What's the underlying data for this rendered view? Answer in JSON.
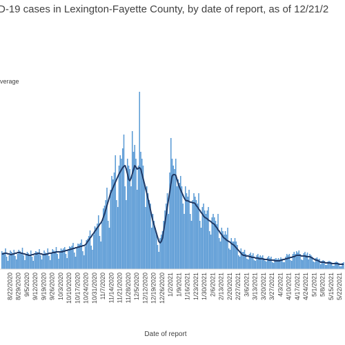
{
  "chart_data": {
    "type": "bar_line",
    "title": "D-19 cases in Lexington-Fayette County, by date of report, as of 12/21/2",
    "legend_fragment": "verage",
    "x_label": "Date of report",
    "categories": [
      null,
      null,
      null,
      null,
      null,
      null,
      null,
      "8/22/2020",
      null,
      null,
      null,
      null,
      null,
      null,
      "8/29/2020",
      null,
      null,
      null,
      null,
      null,
      null,
      "9/5/2020",
      null,
      null,
      null,
      null,
      null,
      null,
      "9/12/2020",
      null,
      null,
      null,
      null,
      null,
      null,
      "9/19/2020",
      null,
      null,
      null,
      null,
      null,
      null,
      "9/26/2020",
      null,
      null,
      null,
      null,
      null,
      null,
      "10/3/2020",
      null,
      null,
      null,
      null,
      null,
      null,
      "10/10/2020",
      null,
      null,
      null,
      null,
      null,
      null,
      "10/17/2020",
      null,
      null,
      null,
      null,
      null,
      null,
      "10/24/2020",
      null,
      null,
      null,
      null,
      null,
      null,
      "10/31/2020",
      null,
      null,
      null,
      null,
      null,
      null,
      "11/7/2020",
      null,
      null,
      null,
      null,
      null,
      null,
      "11/14/2020",
      null,
      null,
      null,
      null,
      null,
      null,
      "11/21/2020",
      null,
      null,
      null,
      null,
      null,
      null,
      "11/28/2020",
      null,
      null,
      null,
      null,
      null,
      null,
      "12/5/2020",
      null,
      null,
      null,
      null,
      null,
      null,
      "12/12/2020",
      null,
      null,
      null,
      null,
      null,
      null,
      "12/19/2020",
      null,
      null,
      null,
      null,
      null,
      null,
      "12/26/2020",
      null,
      null,
      null,
      null,
      null,
      null,
      "1/2/2021",
      null,
      null,
      null,
      null,
      null,
      null,
      "1/9/2021",
      null,
      null,
      null,
      null,
      null,
      null,
      "1/16/2021",
      null,
      null,
      null,
      null,
      null,
      null,
      "1/23/2021",
      null,
      null,
      null,
      null,
      null,
      null,
      "1/30/2021",
      null,
      null,
      null,
      null,
      null,
      null,
      "2/6/2021",
      null,
      null,
      null,
      null,
      null,
      null,
      "2/13/2021",
      null,
      null,
      null,
      null,
      null,
      null,
      "2/20/2021",
      null,
      null,
      null,
      null,
      null,
      null,
      "2/27/2021",
      null,
      null,
      null,
      null,
      null,
      null,
      "3/6/2021",
      null,
      null,
      null,
      null,
      null,
      null,
      "3/13/2021",
      null,
      null,
      null,
      null,
      null,
      null,
      "3/20/2021",
      null,
      null,
      null,
      null,
      null,
      null,
      "3/27/2021",
      null,
      null,
      null,
      null,
      null,
      null,
      "4/3/2021",
      null,
      null,
      null,
      null,
      null,
      null,
      "4/10/2021",
      null,
      null,
      null,
      null,
      null,
      null,
      "4/17/2021",
      null,
      null,
      null,
      null,
      null,
      null,
      "4/24/2021",
      null,
      null,
      null,
      null,
      null,
      null,
      "5/1/2021",
      null,
      null,
      null,
      null,
      null,
      null,
      "5/8/2021",
      null,
      null,
      null,
      null,
      null,
      null,
      "5/15/2021",
      null,
      null,
      null,
      null,
      null,
      null,
      "5/22/2021",
      null,
      null,
      null
    ],
    "series": [
      {
        "type": "bar",
        "color": "#5b9bd5",
        "values": [
          26,
          24,
          22,
          30,
          18,
          12,
          20,
          27,
          25,
          23,
          28,
          19,
          14,
          22,
          28,
          26,
          24,
          31,
          20,
          13,
          21,
          25,
          23,
          21,
          27,
          18,
          12,
          20,
          26,
          25,
          24,
          29,
          20,
          14,
          22,
          27,
          24,
          22,
          30,
          19,
          13,
          23,
          29,
          27,
          26,
          32,
          22,
          15,
          25,
          30,
          28,
          30,
          32,
          22,
          16,
          27,
          33,
          32,
          34,
          38,
          24,
          18,
          30,
          37,
          36,
          38,
          43,
          26,
          20,
          33,
          42,
          44,
          48,
          56,
          34,
          28,
          50,
          62,
          60,
          66,
          78,
          48,
          40,
          68,
          88,
          92,
          100,
          118,
          70,
          60,
          115,
          135,
          130,
          140,
          165,
          100,
          90,
          150,
          165,
          160,
          175,
          195,
          120,
          100,
          160,
          150,
          145,
          120,
          200,
          170,
          180,
          160,
          115,
          150,
          257,
          170,
          160,
          150,
          125,
          90,
          120,
          110,
          100,
          95,
          60,
          80,
          70,
          60,
          50,
          35,
          25,
          45,
          50,
          55,
          70,
          85,
          95,
          110,
          80,
          140,
          190,
          160,
          150,
          145,
          160,
          120,
          130,
          125,
          135,
          120,
          95,
          80,
          120,
          110,
          105,
          115,
          80,
          70,
          100,
          110,
          105,
          100,
          95,
          110,
          70,
          60,
          90,
          95,
          85,
          80,
          85,
          90,
          55,
          50,
          75,
          80,
          75,
          70,
          65,
          80,
          45,
          40,
          60,
          55,
          50,
          55,
          50,
          60,
          30,
          28,
          45,
          40,
          40,
          45,
          40,
          35,
          20,
          18,
          30,
          25,
          25,
          28,
          22,
          15,
          14,
          22,
          24,
          20,
          23,
          13,
          12,
          20,
          22,
          18,
          20,
          18,
          20,
          16,
          12,
          11,
          17,
          19,
          16,
          18,
          10,
          9,
          15,
          16,
          14,
          16,
          14,
          17,
          15,
          10,
          10,
          18,
          22,
          20,
          22,
          13,
          12,
          22,
          25,
          22,
          26,
          24,
          27,
          22,
          14,
          13,
          23,
          25,
          21,
          24,
          14,
          22,
          20,
          18,
          11,
          10,
          16,
          17,
          14,
          15,
          7,
          12,
          13,
          12,
          6,
          6,
          11,
          12,
          11,
          10,
          5,
          5,
          10,
          11,
          10,
          9,
          4,
          4,
          9,
          10
        ]
      },
      {
        "type": "line",
        "color": "#1f3864",
        "values": [
          22,
          22,
          23,
          23,
          23,
          22,
          22,
          21,
          21,
          22,
          22,
          23,
          23,
          24,
          24,
          24,
          23,
          23,
          22,
          22,
          21,
          21,
          20,
          20,
          20,
          21,
          21,
          22,
          22,
          22,
          23,
          23,
          22,
          22,
          21,
          21,
          21,
          22,
          22,
          23,
          23,
          23,
          24,
          24,
          24,
          25,
          25,
          25,
          25,
          25,
          25,
          26,
          26,
          27,
          27,
          28,
          28,
          29,
          29,
          30,
          30,
          31,
          31,
          32,
          32,
          33,
          33,
          34,
          34,
          35,
          37,
          40,
          42,
          45,
          47,
          50,
          52,
          55,
          57,
          60,
          62,
          65,
          67,
          70,
          75,
          80,
          86,
          92,
          98,
          104,
          110,
          114,
          118,
          122,
          126,
          130,
          134,
          138,
          141,
          144,
          147,
          149,
          150,
          145,
          138,
          130,
          128,
          132,
          138,
          144,
          150,
          148,
          145,
          146,
          147,
          145,
          138,
          131,
          124,
          117,
          110,
          102,
          94,
          86,
          78,
          70,
          64,
          58,
          52,
          46,
          40,
          38,
          40,
          45,
          56,
          67,
          78,
          90,
          101,
          112,
          124,
          135,
          137,
          137,
          136,
          130,
          124,
          119,
          115,
          111,
          107,
          103,
          100,
          99,
          99,
          98,
          97,
          97,
          96,
          96,
          95,
          92,
          90,
          87,
          85,
          82,
          80,
          77,
          75,
          74,
          73,
          71,
          70,
          69,
          67,
          66,
          65,
          62,
          60,
          57,
          55,
          52,
          50,
          47,
          45,
          44,
          42,
          41,
          40,
          39,
          37,
          36,
          35,
          33,
          31,
          29,
          27,
          25,
          23,
          21,
          20,
          20,
          19,
          19,
          19,
          18,
          18,
          17,
          17,
          17,
          16,
          16,
          16,
          15,
          15,
          15,
          15,
          14,
          14,
          14,
          14,
          13,
          13,
          13,
          13,
          13,
          12,
          12,
          12,
          12,
          12,
          13,
          13,
          14,
          14,
          15,
          15,
          16,
          16,
          17,
          17,
          18,
          18,
          19,
          20,
          20,
          20,
          20,
          19,
          19,
          19,
          19,
          18,
          18,
          18,
          18,
          17,
          16,
          15,
          14,
          13,
          13,
          12,
          11,
          10,
          10,
          10,
          10,
          9,
          9,
          9,
          9,
          9,
          8,
          8,
          8,
          8,
          8,
          8,
          7,
          7,
          7,
          7,
          7
        ]
      }
    ],
    "ylim": [
      0,
      300
    ]
  }
}
